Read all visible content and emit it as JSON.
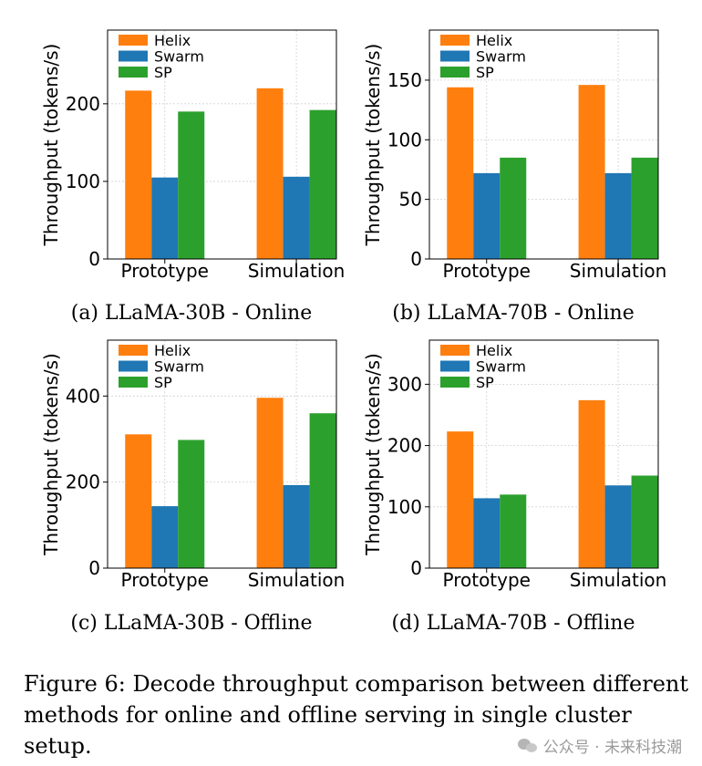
{
  "chart_data": [
    {
      "type": "bar",
      "subcaption": "(a) LLaMA-30B - Online",
      "categories": [
        "Prototype",
        "Simulation"
      ],
      "series": [
        {
          "name": "Helix",
          "values": [
            217,
            220
          ]
        },
        {
          "name": "Swarm",
          "values": [
            105,
            106
          ]
        },
        {
          "name": "SP",
          "values": [
            190,
            192
          ]
        }
      ],
      "ylabel": "Throughput (tokens/s)",
      "ylim": [
        0,
        295
      ],
      "yticks": [
        0,
        100,
        200
      ],
      "grid": true,
      "legend_position": "top-left"
    },
    {
      "type": "bar",
      "subcaption": "(b) LLaMA-70B - Online",
      "categories": [
        "Prototype",
        "Simulation"
      ],
      "series": [
        {
          "name": "Helix",
          "values": [
            144,
            146
          ]
        },
        {
          "name": "Swarm",
          "values": [
            72,
            72
          ]
        },
        {
          "name": "SP",
          "values": [
            85,
            85
          ]
        }
      ],
      "ylabel": "Throughput (tokens/s)",
      "ylim": [
        0,
        192
      ],
      "yticks": [
        0,
        50,
        100,
        150
      ],
      "grid": true,
      "legend_position": "top-left"
    },
    {
      "type": "bar",
      "subcaption": "(c) LLaMA-30B - Offline",
      "categories": [
        "Prototype",
        "Simulation"
      ],
      "series": [
        {
          "name": "Helix",
          "values": [
            311,
            396
          ]
        },
        {
          "name": "Swarm",
          "values": [
            144,
            193
          ]
        },
        {
          "name": "SP",
          "values": [
            298,
            360
          ]
        }
      ],
      "ylabel": "Throughput (tokens/s)",
      "ylim": [
        0,
        530
      ],
      "yticks": [
        0,
        200,
        400
      ],
      "grid": true,
      "legend_position": "top-left"
    },
    {
      "type": "bar",
      "subcaption": "(d) LLaMA-70B - Offline",
      "categories": [
        "Prototype",
        "Simulation"
      ],
      "series": [
        {
          "name": "Helix",
          "values": [
            223,
            274
          ]
        },
        {
          "name": "Swarm",
          "values": [
            114,
            135
          ]
        },
        {
          "name": "SP",
          "values": [
            120,
            151
          ]
        }
      ],
      "ylabel": "Throughput (tokens/s)",
      "ylim": [
        0,
        372
      ],
      "yticks": [
        0,
        100,
        200,
        300
      ],
      "grid": true,
      "legend_position": "top-left"
    }
  ],
  "colors": {
    "Helix": "#ff7f0e",
    "Swarm": "#1f77b4",
    "SP": "#2ca02c",
    "grid": "#d0d0d0"
  },
  "figure_caption": "Figure 6: Decode throughput comparison between different methods for online and offline serving in single cluster setup.",
  "watermark": "公众号 · 未来科技潮"
}
